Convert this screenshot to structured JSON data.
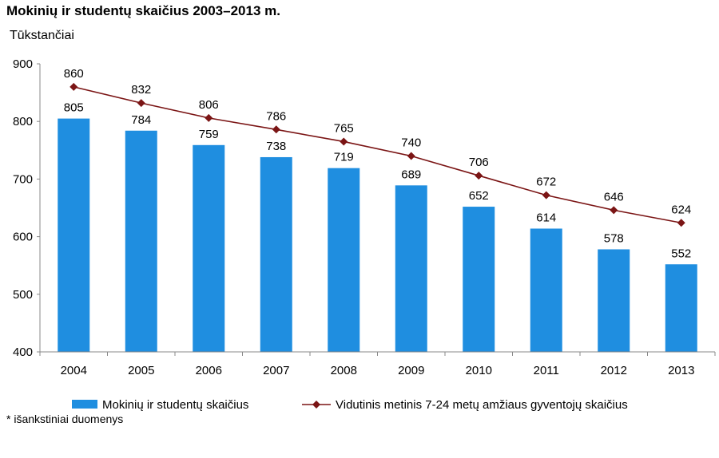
{
  "chart_data": {
    "type": "bar+line",
    "title": "Mokinių ir studentų skaičius 2003–2013 m.",
    "ylabel": "Tūkstančiai",
    "ylim": [
      400,
      900
    ],
    "yticks": [
      400,
      500,
      600,
      700,
      800,
      900
    ],
    "categories": [
      "2004",
      "2005",
      "2006",
      "2007",
      "2008",
      "2009",
      "2010",
      "2011",
      "2012",
      "2013"
    ],
    "series": [
      {
        "name": "Mokinių ir studentų skaičius",
        "kind": "bar",
        "color": "#1f8ee0",
        "values": [
          805,
          784,
          759,
          738,
          719,
          689,
          652,
          614,
          578,
          552
        ]
      },
      {
        "name": "Vidutinis metinis 7-24 metų amžiaus gyventojų skaičius",
        "kind": "line",
        "color": "#7b1515",
        "values": [
          860,
          832,
          806,
          786,
          765,
          740,
          706,
          672,
          646,
          624
        ]
      }
    ],
    "grid": false,
    "legend": "bottom",
    "footnote": "* išankstiniai duomenys"
  }
}
